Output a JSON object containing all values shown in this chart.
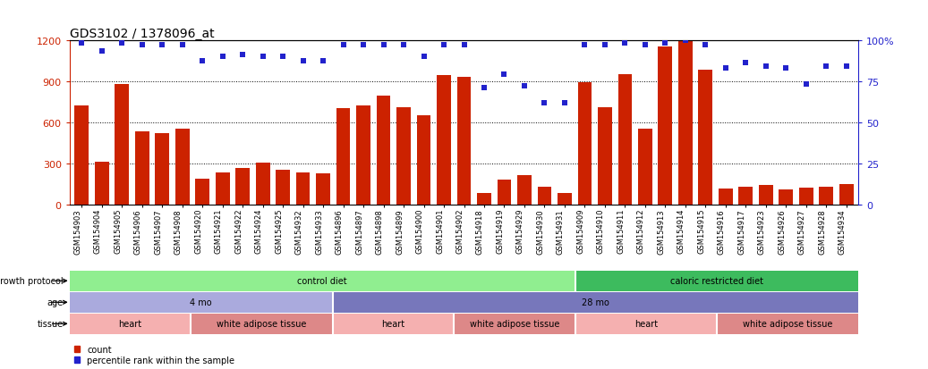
{
  "title": "GDS3102 / 1378096_at",
  "samples": [
    "GSM154903",
    "GSM154904",
    "GSM154905",
    "GSM154906",
    "GSM154907",
    "GSM154908",
    "GSM154920",
    "GSM154921",
    "GSM154922",
    "GSM154924",
    "GSM154925",
    "GSM154932",
    "GSM154933",
    "GSM154896",
    "GSM154897",
    "GSM154898",
    "GSM154899",
    "GSM154900",
    "GSM154901",
    "GSM154902",
    "GSM154918",
    "GSM154919",
    "GSM154929",
    "GSM154930",
    "GSM154931",
    "GSM154909",
    "GSM154910",
    "GSM154911",
    "GSM154912",
    "GSM154913",
    "GSM154914",
    "GSM154915",
    "GSM154916",
    "GSM154917",
    "GSM154923",
    "GSM154926",
    "GSM154927",
    "GSM154928",
    "GSM154934"
  ],
  "bar_values": [
    720,
    310,
    880,
    530,
    520,
    550,
    185,
    235,
    265,
    305,
    255,
    235,
    225,
    700,
    720,
    790,
    710,
    650,
    940,
    930,
    85,
    180,
    215,
    130,
    85,
    890,
    710,
    950,
    550,
    1150,
    1200,
    980,
    115,
    130,
    140,
    110,
    120,
    130,
    150
  ],
  "percentile_values": [
    98,
    93,
    98,
    97,
    97,
    97,
    87,
    90,
    91,
    90,
    90,
    87,
    87,
    97,
    97,
    97,
    97,
    90,
    97,
    97,
    71,
    79,
    72,
    62,
    62,
    97,
    97,
    98,
    97,
    98,
    100,
    97,
    83,
    86,
    84,
    83,
    73,
    84,
    84
  ],
  "bar_color": "#cc2200",
  "percentile_color": "#2222cc",
  "ylim_left": [
    0,
    1200
  ],
  "ylim_right": [
    0,
    100
  ],
  "yticks_left": [
    0,
    300,
    600,
    900,
    1200
  ],
  "yticks_right": [
    0,
    25,
    50,
    75,
    100
  ],
  "growth_protocol_segments": [
    {
      "start": 0,
      "end": 25,
      "text": "control diet",
      "color": "#90ee90"
    },
    {
      "start": 25,
      "end": 39,
      "text": "caloric restricted diet",
      "color": "#3dbb5e"
    }
  ],
  "age_segments": [
    {
      "start": 0,
      "end": 13,
      "text": "4 mo",
      "color": "#aaaadd"
    },
    {
      "start": 13,
      "end": 39,
      "text": "28 mo",
      "color": "#7777bb"
    }
  ],
  "tissue_segments": [
    {
      "start": 0,
      "end": 6,
      "text": "heart",
      "color": "#f5b0b0"
    },
    {
      "start": 6,
      "end": 13,
      "text": "white adipose tissue",
      "color": "#dd8888"
    },
    {
      "start": 13,
      "end": 19,
      "text": "heart",
      "color": "#f5b0b0"
    },
    {
      "start": 19,
      "end": 25,
      "text": "white adipose tissue",
      "color": "#dd8888"
    },
    {
      "start": 25,
      "end": 32,
      "text": "heart",
      "color": "#f5b0b0"
    },
    {
      "start": 32,
      "end": 39,
      "text": "white adipose tissue",
      "color": "#dd8888"
    }
  ],
  "growth_protocol_label": "growth protocol",
  "age_label": "age",
  "tissue_label": "tissue",
  "legend_count_label": "count",
  "legend_pct_label": "percentile rank within the sample",
  "bg_color": "#ffffff",
  "title_fontsize": 10,
  "bar_width": 0.7,
  "tick_fontsize": 6,
  "annot_fontsize": 7,
  "label_fontsize": 7
}
